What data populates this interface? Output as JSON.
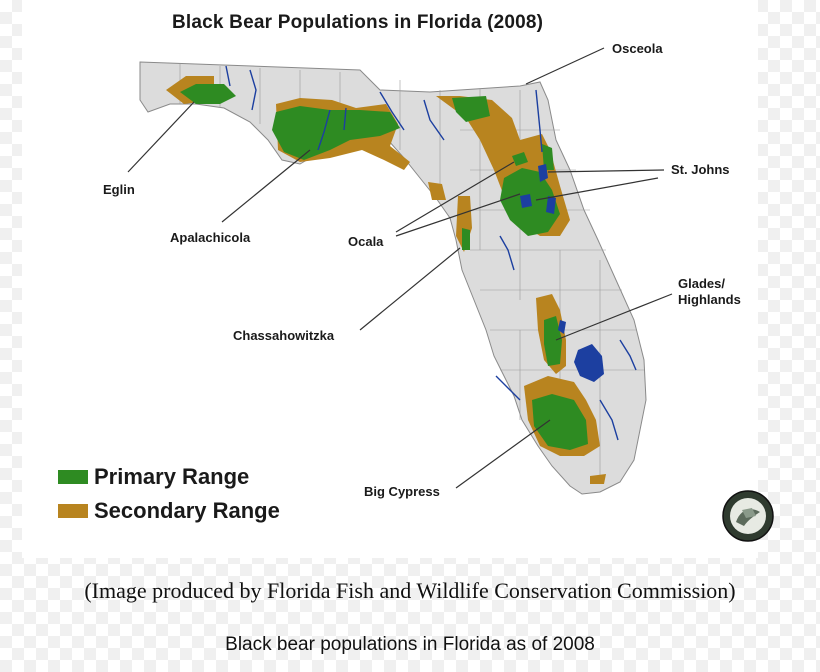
{
  "map": {
    "title": "Black Bear Populations in Florida (2008)",
    "regions": {
      "osceola": "Osceola",
      "st_johns": "St. Johns",
      "eglin": "Eglin",
      "apalachicola": "Apalachicola",
      "ocala": "Ocala",
      "glades_highlands_line1": "Glades/",
      "glades_highlands_line2": "Highlands",
      "chassahowitzka": "Chassahowitzka",
      "big_cypress": "Big Cypress"
    },
    "legend": {
      "primary": {
        "label": "Primary Range",
        "color": "#2e8b22"
      },
      "secondary": {
        "label": "Secondary Range",
        "color": "#b8841f"
      }
    },
    "colors": {
      "land": "#dcdcdc",
      "water": "#1c3fa0"
    },
    "seal_icon": "fwc-seal-icon"
  },
  "captions": {
    "credit": "(Image produced by Florida Fish and Wildlife Conservation Commission)",
    "description": "Black bear populations in Florida as of 2008"
  }
}
